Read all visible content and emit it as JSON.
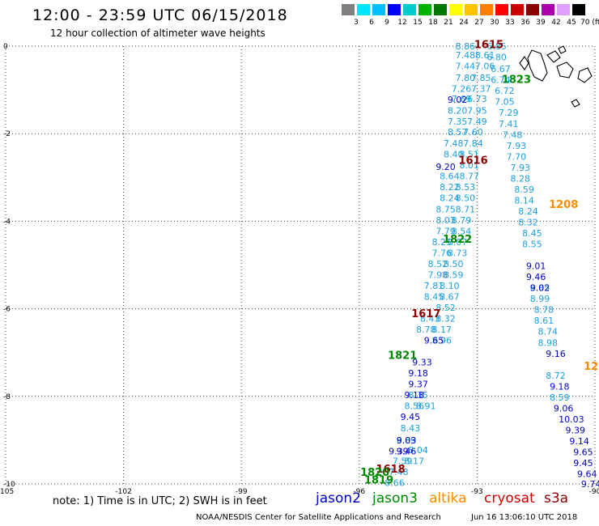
{
  "title": "12:00 - 23:59 UTC 06/15/2018",
  "subtitle": "12 hour collection of altimeter wave heights",
  "color_scale": {
    "labels": [
      "3",
      "6",
      "9",
      "12",
      "15",
      "18",
      "21",
      "24",
      "27",
      "30",
      "33",
      "36",
      "39",
      "42",
      "45",
      "70 (ft)"
    ],
    "colors": [
      "#808080",
      "#00e5ff",
      "#00bfff",
      "#0000ff",
      "#00cccc",
      "#00b300",
      "#007700",
      "#ffff00",
      "#ffc400",
      "#ff8000",
      "#ff0000",
      "#cc0000",
      "#8b0000",
      "#aa00aa",
      "#e0a0ff",
      "#000000"
    ]
  },
  "axes": {
    "lon_ticks": [
      "-105",
      "-102",
      "-99",
      "-96",
      "-93",
      "-90"
    ],
    "lat_ticks": [
      "0",
      "-2",
      "-4",
      "-6",
      "-8",
      "-10"
    ]
  },
  "footer": {
    "note": "note: 1) Time is in UTC; 2) SWH is in feet",
    "satellites": [
      {
        "name": "jason2",
        "color": "#0000cc"
      },
      {
        "name": "jason3",
        "color": "#008800"
      },
      {
        "name": "altika",
        "color": "#ff8c00"
      },
      {
        "name": "cryosat",
        "color": "#cc0000"
      },
      {
        "name": "s3a",
        "color": "#8b0000"
      }
    ],
    "credit": "NOAA/NESDIS Center for Satellite Applications and Research",
    "timestamp": "Jun 16 13:06:10 UTC 2018"
  },
  "chart_data": {
    "type": "scatter",
    "title": "12:00 - 23:59 UTC 06/15/2018",
    "xlim": [
      -105,
      -90
    ],
    "ylim": [
      -10,
      0
    ],
    "grid": true,
    "time_labels": [
      {
        "text": "1615",
        "lon": -92.7,
        "lat": 0.05,
        "sat": "s3a"
      },
      {
        "text": "1823",
        "lon": -92.0,
        "lat": -0.75,
        "sat": "jason3"
      },
      {
        "text": "1616",
        "lon": -93.1,
        "lat": -2.6,
        "sat": "s3a"
      },
      {
        "text": "1208",
        "lon": -90.8,
        "lat": -3.6,
        "sat": "altika"
      },
      {
        "text": "1822",
        "lon": -93.5,
        "lat": -4.4,
        "sat": "jason3"
      },
      {
        "text": "1617",
        "lon": -94.3,
        "lat": -6.1,
        "sat": "s3a"
      },
      {
        "text": "1821",
        "lon": -94.9,
        "lat": -7.05,
        "sat": "jason3"
      },
      {
        "text": "12",
        "lon": -90.1,
        "lat": -7.3,
        "sat": "altika"
      },
      {
        "text": "1618",
        "lon": -95.2,
        "lat": -9.65,
        "sat": "s3a"
      },
      {
        "text": "1820",
        "lon": -95.6,
        "lat": -9.72,
        "sat": "jason3"
      },
      {
        "text": "1819",
        "lon": -95.5,
        "lat": -9.9,
        "sat": "jason3"
      }
    ],
    "tracks": [
      {
        "sat": "cryosat",
        "color": "#1a9fe0",
        "points": [
          {
            "lon": -93.3,
            "lat": 0.0,
            "v": "8.86"
          },
          {
            "lon": -93.3,
            "lat": -0.2,
            "v": "7.48"
          },
          {
            "lon": -93.3,
            "lat": -0.45,
            "v": "7.44"
          },
          {
            "lon": -93.3,
            "lat": -0.72,
            "v": "7.80"
          },
          {
            "lon": -93.4,
            "lat": -0.97,
            "v": "7.26"
          },
          {
            "lon": -93.4,
            "lat": -1.2,
            "v": "7.69"
          },
          {
            "lon": -93.5,
            "lat": -1.47,
            "v": "8.20"
          },
          {
            "lon": -93.5,
            "lat": -1.72,
            "v": "7.35"
          },
          {
            "lon": -93.5,
            "lat": -1.96,
            "v": "8.57"
          },
          {
            "lon": -93.6,
            "lat": -2.22,
            "v": "7.48"
          },
          {
            "lon": -93.6,
            "lat": -2.47,
            "v": "8.40"
          },
          {
            "lon": -93.7,
            "lat": -2.97,
            "v": "8.64"
          },
          {
            "lon": -93.7,
            "lat": -3.22,
            "v": "8.22"
          },
          {
            "lon": -93.7,
            "lat": -3.47,
            "v": "8.24"
          },
          {
            "lon": -93.8,
            "lat": -3.72,
            "v": "8.75"
          },
          {
            "lon": -93.8,
            "lat": -3.97,
            "v": "8.03"
          },
          {
            "lon": -93.8,
            "lat": -4.22,
            "v": "7.79"
          },
          {
            "lon": -93.9,
            "lat": -4.47,
            "v": "8.25"
          },
          {
            "lon": -93.9,
            "lat": -4.72,
            "v": "7.76"
          },
          {
            "lon": -94.0,
            "lat": -4.97,
            "v": "8.52"
          },
          {
            "lon": -94.0,
            "lat": -5.22,
            "v": "7.98"
          },
          {
            "lon": -94.1,
            "lat": -5.47,
            "v": "7.81"
          },
          {
            "lon": -94.1,
            "lat": -5.72,
            "v": "8.45"
          },
          {
            "lon": -94.2,
            "lat": -6.22,
            "v": "8.43"
          },
          {
            "lon": -94.3,
            "lat": -6.47,
            "v": "8.78"
          },
          {
            "lon": -94.5,
            "lat": -7.97,
            "v": "8.35"
          },
          {
            "lon": -94.6,
            "lat": -8.22,
            "v": "8.56"
          },
          {
            "lon": -94.7,
            "lat": -8.72,
            "v": "8.43"
          },
          {
            "lon": -94.8,
            "lat": -9.0,
            "v": "8.89"
          },
          {
            "lon": -94.9,
            "lat": -9.47,
            "v": "7.59"
          },
          {
            "lon": -95.0,
            "lat": -9.72,
            "v": "7.48"
          },
          {
            "lon": -95.1,
            "lat": -9.97,
            "v": "8.66"
          }
        ]
      },
      {
        "sat": "cryosat",
        "color": "#1a9fe0",
        "points": [
          {
            "lon": -92.8,
            "lat": -0.2,
            "v": "8.61"
          },
          {
            "lon": -92.8,
            "lat": -0.45,
            "v": "7.06"
          },
          {
            "lon": -92.9,
            "lat": -0.72,
            "v": "7.85"
          },
          {
            "lon": -92.9,
            "lat": -0.97,
            "v": "7.37"
          },
          {
            "lon": -93.0,
            "lat": -1.2,
            "v": "6.73"
          },
          {
            "lon": -93.0,
            "lat": -1.47,
            "v": "7.95"
          },
          {
            "lon": -93.0,
            "lat": -1.72,
            "v": "7.49"
          },
          {
            "lon": -93.1,
            "lat": -1.96,
            "v": "7.60"
          },
          {
            "lon": -93.1,
            "lat": -2.22,
            "v": "7.84"
          },
          {
            "lon": -93.2,
            "lat": -2.47,
            "v": "8.51"
          },
          {
            "lon": -93.2,
            "lat": -2.72,
            "v": "8.01"
          },
          {
            "lon": -93.2,
            "lat": -2.97,
            "v": "8.77"
          },
          {
            "lon": -93.3,
            "lat": -3.22,
            "v": "8.53"
          },
          {
            "lon": -93.3,
            "lat": -3.47,
            "v": "8.50"
          },
          {
            "lon": -93.3,
            "lat": -3.72,
            "v": "8.71"
          },
          {
            "lon": -93.4,
            "lat": -3.97,
            "v": "8.79"
          },
          {
            "lon": -93.4,
            "lat": -4.22,
            "v": "8.54"
          },
          {
            "lon": -93.5,
            "lat": -4.47,
            "v": "8.07"
          },
          {
            "lon": -93.5,
            "lat": -4.72,
            "v": "8.73"
          },
          {
            "lon": -93.6,
            "lat": -4.97,
            "v": "8.50"
          },
          {
            "lon": -93.6,
            "lat": -5.22,
            "v": "8.59"
          },
          {
            "lon": -93.7,
            "lat": -5.47,
            "v": "8.10"
          },
          {
            "lon": -93.7,
            "lat": -5.72,
            "v": "8.67"
          },
          {
            "lon": -93.8,
            "lat": -5.97,
            "v": "8.52"
          },
          {
            "lon": -93.8,
            "lat": -6.22,
            "v": "8.32"
          },
          {
            "lon": -93.9,
            "lat": -6.47,
            "v": "8.17"
          },
          {
            "lon": -93.9,
            "lat": -6.72,
            "v": "8.96"
          },
          {
            "lon": -94.3,
            "lat": -8.22,
            "v": "8.91"
          },
          {
            "lon": -94.5,
            "lat": -9.22,
            "v": "8.04"
          },
          {
            "lon": -94.6,
            "lat": -9.47,
            "v": "8.17"
          }
        ]
      },
      {
        "sat": "cryosat",
        "color": "#1a9fe0",
        "points": [
          {
            "lon": -92.5,
            "lat": 0.0,
            "v": "6.85"
          },
          {
            "lon": -92.5,
            "lat": -0.25,
            "v": "6.80"
          },
          {
            "lon": -92.4,
            "lat": -0.52,
            "v": "6.67"
          },
          {
            "lon": -92.4,
            "lat": -0.77,
            "v": "6.74"
          },
          {
            "lon": -92.3,
            "lat": -1.02,
            "v": "6.72"
          },
          {
            "lon": -92.3,
            "lat": -1.27,
            "v": "7.05"
          },
          {
            "lon": -92.2,
            "lat": -1.52,
            "v": "7.29"
          },
          {
            "lon": -92.2,
            "lat": -1.77,
            "v": "7.41"
          },
          {
            "lon": -92.1,
            "lat": -2.02,
            "v": "7.48"
          },
          {
            "lon": -92.0,
            "lat": -2.27,
            "v": "7.93"
          },
          {
            "lon": -92.0,
            "lat": -2.52,
            "v": "7.70"
          },
          {
            "lon": -91.9,
            "lat": -2.77,
            "v": "7.93"
          },
          {
            "lon": -91.9,
            "lat": -3.02,
            "v": "8.28"
          },
          {
            "lon": -91.8,
            "lat": -3.27,
            "v": "8.59"
          },
          {
            "lon": -91.8,
            "lat": -3.52,
            "v": "8.14"
          },
          {
            "lon": -91.7,
            "lat": -3.77,
            "v": "8.24"
          },
          {
            "lon": -91.7,
            "lat": -4.02,
            "v": "8.32"
          },
          {
            "lon": -91.6,
            "lat": -4.27,
            "v": "8.45"
          },
          {
            "lon": -91.6,
            "lat": -4.52,
            "v": "8.55"
          },
          {
            "lon": -91.4,
            "lat": -5.52,
            "v": "8.85"
          },
          {
            "lon": -91.4,
            "lat": -5.77,
            "v": "8.99"
          },
          {
            "lon": -91.3,
            "lat": -6.02,
            "v": "8.78"
          },
          {
            "lon": -91.3,
            "lat": -6.27,
            "v": "8.61"
          },
          {
            "lon": -91.2,
            "lat": -6.52,
            "v": "8.74"
          },
          {
            "lon": -91.2,
            "lat": -6.77,
            "v": "8.98"
          },
          {
            "lon": -91.0,
            "lat": -7.52,
            "v": "8.72"
          },
          {
            "lon": -90.9,
            "lat": -8.02,
            "v": "8.59"
          }
        ]
      },
      {
        "sat": "jason2",
        "color": "#0000cc",
        "points": [
          {
            "lon": -93.5,
            "lat": -1.22,
            "v": "9.02"
          },
          {
            "lon": -93.8,
            "lat": -2.75,
            "v": "9.20"
          },
          {
            "lon": -91.5,
            "lat": -5.02,
            "v": "9.01"
          },
          {
            "lon": -91.5,
            "lat": -5.27,
            "v": "9.46"
          },
          {
            "lon": -91.4,
            "lat": -5.52,
            "v": "9.02"
          },
          {
            "lon": -94.1,
            "lat": -6.72,
            "v": "9.65"
          },
          {
            "lon": -94.4,
            "lat": -7.22,
            "v": "9.33"
          },
          {
            "lon": -94.5,
            "lat": -7.47,
            "v": "9.18"
          },
          {
            "lon": -94.5,
            "lat": -7.72,
            "v": "9.37"
          },
          {
            "lon": -94.6,
            "lat": -7.97,
            "v": "9.18"
          },
          {
            "lon": -94.7,
            "lat": -8.47,
            "v": "9.45"
          },
          {
            "lon": -94.8,
            "lat": -9.0,
            "v": "9.03"
          },
          {
            "lon": -95.0,
            "lat": -9.25,
            "v": "9.39"
          },
          {
            "lon": -94.8,
            "lat": -9.25,
            "v": "9.46"
          },
          {
            "lon": -91.0,
            "lat": -7.02,
            "v": "9.16"
          },
          {
            "lon": -90.9,
            "lat": -7.77,
            "v": "9.18"
          },
          {
            "lon": -90.8,
            "lat": -8.27,
            "v": "9.06"
          },
          {
            "lon": -90.6,
            "lat": -8.52,
            "v": "10.03"
          },
          {
            "lon": -90.5,
            "lat": -8.77,
            "v": "9.39"
          },
          {
            "lon": -90.4,
            "lat": -9.02,
            "v": "9.14"
          },
          {
            "lon": -90.3,
            "lat": -9.27,
            "v": "9.65"
          },
          {
            "lon": -90.3,
            "lat": -9.52,
            "v": "9.45"
          },
          {
            "lon": -90.2,
            "lat": -9.77,
            "v": "9.64"
          },
          {
            "lon": -90.1,
            "lat": -10.0,
            "v": "9.74"
          }
        ]
      }
    ],
    "land": "Galapagos Islands coastline (top-right)"
  }
}
